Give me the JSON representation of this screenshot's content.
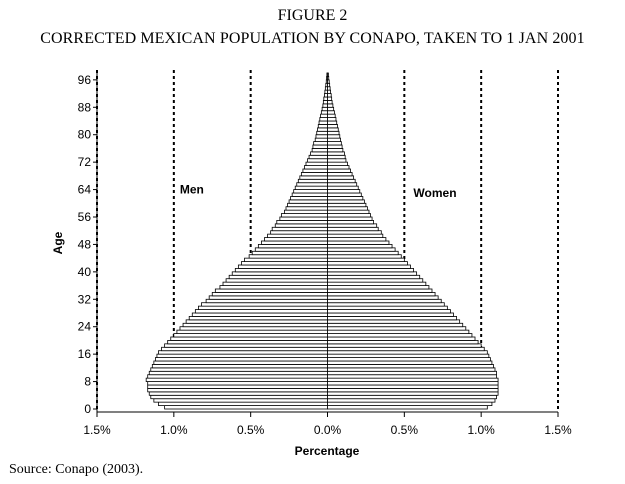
{
  "figure": {
    "number": "FIGURE 2",
    "title": "CORRECTED MEXICAN POPULATION BY CONAPO, TAKEN TO 1 JAN 2001"
  },
  "source": "Source: Conapo (2003).",
  "chart_data": {
    "type": "bar",
    "orientation": "horizontal",
    "subtype": "population-pyramid",
    "xlabel": "Percentage",
    "ylabel": "Age",
    "x_ticks": [
      {
        "value": -1.5,
        "label": "1.5%"
      },
      {
        "value": -1.0,
        "label": "1.0%"
      },
      {
        "value": -0.5,
        "label": "0.5%"
      },
      {
        "value": 0.0,
        "label": "0.0%"
      },
      {
        "value": 0.5,
        "label": "0.5%"
      },
      {
        "value": 1.0,
        "label": "1.0%"
      },
      {
        "value": 1.5,
        "label": "1.5%"
      }
    ],
    "y_ticks": [
      0,
      8,
      16,
      24,
      32,
      40,
      48,
      56,
      64,
      72,
      80,
      88,
      96
    ],
    "xlim": [
      -1.5,
      1.5
    ],
    "ylim": [
      0,
      98
    ],
    "vertical_reference_lines": [
      -1.5,
      -1.0,
      -0.5,
      0.5,
      1.0,
      1.5
    ],
    "grid": false,
    "annotations": [
      {
        "text": "Men",
        "x": -1.0,
        "y": 64
      },
      {
        "text": "Women",
        "x": 0.52,
        "y": 63
      }
    ],
    "ages": [
      0,
      1,
      2,
      3,
      4,
      5,
      6,
      7,
      8,
      9,
      10,
      11,
      12,
      13,
      14,
      15,
      16,
      17,
      18,
      19,
      20,
      21,
      22,
      23,
      24,
      25,
      26,
      27,
      28,
      29,
      30,
      31,
      32,
      33,
      34,
      35,
      36,
      37,
      38,
      39,
      40,
      41,
      42,
      43,
      44,
      45,
      46,
      47,
      48,
      49,
      50,
      51,
      52,
      53,
      54,
      55,
      56,
      57,
      58,
      59,
      60,
      61,
      62,
      63,
      64,
      65,
      66,
      67,
      68,
      69,
      70,
      71,
      72,
      73,
      74,
      75,
      76,
      77,
      78,
      79,
      80,
      81,
      82,
      83,
      84,
      85,
      86,
      87,
      88,
      89,
      90,
      91,
      92,
      93,
      94,
      95,
      96,
      97
    ],
    "series": [
      {
        "name": "Men",
        "values": [
          1.06,
          1.1,
          1.13,
          1.15,
          1.16,
          1.17,
          1.17,
          1.17,
          1.18,
          1.17,
          1.16,
          1.15,
          1.14,
          1.13,
          1.12,
          1.11,
          1.1,
          1.08,
          1.06,
          1.04,
          1.02,
          1.0,
          0.98,
          0.96,
          0.94,
          0.92,
          0.9,
          0.88,
          0.86,
          0.84,
          0.82,
          0.79,
          0.77,
          0.75,
          0.73,
          0.7,
          0.68,
          0.66,
          0.64,
          0.62,
          0.6,
          0.58,
          0.56,
          0.54,
          0.51,
          0.49,
          0.47,
          0.45,
          0.43,
          0.41,
          0.39,
          0.37,
          0.36,
          0.34,
          0.33,
          0.31,
          0.3,
          0.28,
          0.27,
          0.26,
          0.25,
          0.24,
          0.23,
          0.22,
          0.21,
          0.2,
          0.19,
          0.18,
          0.17,
          0.16,
          0.15,
          0.14,
          0.13,
          0.12,
          0.11,
          0.1,
          0.095,
          0.09,
          0.08,
          0.075,
          0.07,
          0.065,
          0.06,
          0.055,
          0.05,
          0.045,
          0.04,
          0.035,
          0.03,
          0.027,
          0.024,
          0.02,
          0.017,
          0.014,
          0.011,
          0.008,
          0.006,
          0.004
        ]
      },
      {
        "name": "Women",
        "values": [
          1.04,
          1.07,
          1.09,
          1.1,
          1.11,
          1.11,
          1.11,
          1.11,
          1.11,
          1.1,
          1.1,
          1.09,
          1.08,
          1.07,
          1.06,
          1.05,
          1.04,
          1.02,
          1.0,
          0.98,
          0.96,
          0.94,
          0.92,
          0.9,
          0.88,
          0.86,
          0.84,
          0.82,
          0.8,
          0.78,
          0.76,
          0.74,
          0.72,
          0.7,
          0.68,
          0.66,
          0.64,
          0.62,
          0.6,
          0.58,
          0.56,
          0.54,
          0.52,
          0.5,
          0.48,
          0.46,
          0.44,
          0.42,
          0.4,
          0.38,
          0.36,
          0.35,
          0.33,
          0.32,
          0.3,
          0.29,
          0.28,
          0.27,
          0.26,
          0.25,
          0.24,
          0.23,
          0.22,
          0.21,
          0.2,
          0.19,
          0.18,
          0.17,
          0.16,
          0.15,
          0.14,
          0.13,
          0.12,
          0.115,
          0.11,
          0.1,
          0.095,
          0.09,
          0.085,
          0.08,
          0.075,
          0.07,
          0.065,
          0.06,
          0.055,
          0.05,
          0.045,
          0.04,
          0.035,
          0.03,
          0.027,
          0.024,
          0.02,
          0.017,
          0.014,
          0.011,
          0.008,
          0.006
        ]
      }
    ]
  }
}
